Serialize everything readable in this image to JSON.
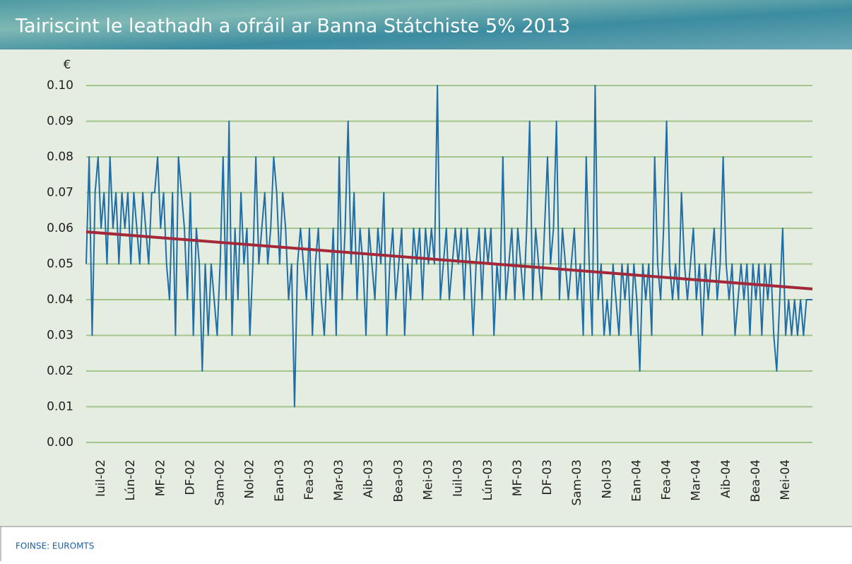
{
  "chart_data": {
    "type": "line",
    "title": "Tairiscint le leathadh a ofráil ar Banna Státchiste 5% 2013",
    "y_label": "€",
    "source": "FOINSE: EUROMTS",
    "categories": [
      null,
      null,
      null,
      null,
      null,
      "Iuil-02",
      null,
      null,
      null,
      null,
      null,
      null,
      null,
      null,
      null,
      "Lún-02",
      null,
      null,
      null,
      null,
      null,
      null,
      null,
      null,
      null,
      "MF-02",
      null,
      null,
      null,
      null,
      null,
      null,
      null,
      null,
      null,
      "DF-02",
      null,
      null,
      null,
      null,
      null,
      null,
      null,
      null,
      null,
      "Sam-02",
      null,
      null,
      null,
      null,
      null,
      null,
      null,
      null,
      null,
      "Nol-02",
      null,
      null,
      null,
      null,
      null,
      null,
      null,
      null,
      null,
      "Ean-03",
      null,
      null,
      null,
      null,
      null,
      null,
      null,
      null,
      null,
      "Fea-03",
      null,
      null,
      null,
      null,
      null,
      null,
      null,
      null,
      null,
      "Mar-03",
      null,
      null,
      null,
      null,
      null,
      null,
      null,
      null,
      null,
      "Aib-03",
      null,
      null,
      null,
      null,
      null,
      null,
      null,
      null,
      null,
      "Bea-03",
      null,
      null,
      null,
      null,
      null,
      null,
      null,
      null,
      null,
      "Mei-03",
      null,
      null,
      null,
      null,
      null,
      null,
      null,
      null,
      null,
      "Iuil-03",
      null,
      null,
      null,
      null,
      null,
      null,
      null,
      null,
      null,
      "Lún-03",
      null,
      null,
      null,
      null,
      null,
      null,
      null,
      null,
      null,
      "MF-03",
      null,
      null,
      null,
      null,
      null,
      null,
      null,
      null,
      null,
      "DF-03",
      null,
      null,
      null,
      null,
      null,
      null,
      null,
      null,
      null,
      "Sam-03",
      null,
      null,
      null,
      null,
      null,
      null,
      null,
      null,
      null,
      "Nol-03",
      null,
      null,
      null,
      null,
      null,
      null,
      null,
      null,
      null,
      "Ean-04",
      null,
      null,
      null,
      null,
      null,
      null,
      null,
      null,
      null,
      "Fea-04",
      null,
      null,
      null,
      null,
      null,
      null,
      null,
      null,
      null,
      "Mar-04",
      null,
      null,
      null,
      null,
      null,
      null,
      null,
      null,
      null,
      "Aib-04",
      null,
      null,
      null,
      null,
      null,
      null,
      null,
      null,
      null,
      "Bea-04",
      null,
      null,
      null,
      null,
      null,
      null,
      null,
      null,
      null,
      "Mei-04",
      null,
      null,
      null,
      null,
      null,
      null,
      null,
      null,
      null
    ],
    "series": [
      {
        "color": "#1f6ea8",
        "values": [
          0.05,
          0.08,
          0.03,
          0.07,
          0.08,
          0.06,
          0.07,
          0.05,
          0.08,
          0.06,
          0.07,
          0.05,
          0.07,
          0.06,
          0.07,
          0.05,
          0.07,
          0.06,
          0.05,
          0.07,
          0.06,
          0.05,
          0.07,
          0.07,
          0.08,
          0.06,
          0.07,
          0.05,
          0.04,
          0.07,
          0.03,
          0.08,
          0.07,
          0.06,
          0.04,
          0.07,
          0.03,
          0.06,
          0.05,
          0.02,
          0.05,
          0.03,
          0.05,
          0.04,
          0.03,
          0.05,
          0.08,
          0.04,
          0.09,
          0.03,
          0.06,
          0.04,
          0.07,
          0.05,
          0.06,
          0.03,
          0.05,
          0.08,
          0.05,
          0.06,
          0.07,
          0.05,
          0.06,
          0.08,
          0.07,
          0.05,
          0.07,
          0.06,
          0.04,
          0.05,
          0.01,
          0.05,
          0.06,
          0.05,
          0.04,
          0.06,
          0.03,
          0.05,
          0.06,
          0.04,
          0.03,
          0.05,
          0.04,
          0.06,
          0.03,
          0.08,
          0.04,
          0.06,
          0.09,
          0.05,
          0.07,
          0.04,
          0.06,
          0.05,
          0.03,
          0.06,
          0.05,
          0.04,
          0.06,
          0.05,
          0.07,
          0.03,
          0.05,
          0.06,
          0.04,
          0.05,
          0.06,
          0.03,
          0.05,
          0.04,
          0.06,
          0.05,
          0.06,
          0.04,
          0.06,
          0.05,
          0.06,
          0.05,
          0.1,
          0.04,
          0.05,
          0.06,
          0.04,
          0.05,
          0.06,
          0.05,
          0.06,
          0.04,
          0.06,
          0.05,
          0.03,
          0.05,
          0.06,
          0.04,
          0.06,
          0.05,
          0.06,
          0.03,
          0.05,
          0.04,
          0.08,
          0.04,
          0.05,
          0.06,
          0.04,
          0.06,
          0.05,
          0.04,
          0.06,
          0.09,
          0.04,
          0.06,
          0.05,
          0.04,
          0.06,
          0.08,
          0.05,
          0.06,
          0.09,
          0.04,
          0.06,
          0.05,
          0.04,
          0.05,
          0.06,
          0.04,
          0.05,
          0.03,
          0.08,
          0.05,
          0.03,
          0.1,
          0.04,
          0.05,
          0.03,
          0.04,
          0.03,
          0.05,
          0.04,
          0.03,
          0.05,
          0.04,
          0.05,
          0.03,
          0.05,
          0.04,
          0.02,
          0.05,
          0.04,
          0.05,
          0.03,
          0.08,
          0.05,
          0.04,
          0.06,
          0.09,
          0.05,
          0.04,
          0.05,
          0.04,
          0.07,
          0.05,
          0.04,
          0.05,
          0.06,
          0.04,
          0.05,
          0.03,
          0.05,
          0.04,
          0.05,
          0.06,
          0.04,
          0.05,
          0.08,
          0.05,
          0.04,
          0.05,
          0.03,
          0.04,
          0.05,
          0.04,
          0.05,
          0.03,
          0.05,
          0.04,
          0.05,
          0.03,
          0.05,
          0.04,
          0.05,
          0.03,
          0.02,
          0.04,
          0.06,
          0.03,
          0.04,
          0.03,
          0.04,
          0.03,
          0.04,
          0.03,
          0.04,
          0.04,
          0.04
        ]
      }
    ],
    "trend_line": {
      "color": "#a3283a",
      "start": 0.059,
      "end": 0.043
    },
    "ylim": [
      0,
      0.1
    ],
    "yticks": [
      {
        "value": 0,
        "label": "0.00"
      },
      {
        "value": 0.01,
        "label": "0.01"
      },
      {
        "value": 0.02,
        "label": "0.02"
      },
      {
        "value": 0.03,
        "label": "0.03"
      },
      {
        "value": 0.04,
        "label": "0.04"
      },
      {
        "value": 0.05,
        "label": "0.05"
      },
      {
        "value": 0.06,
        "label": "0.06"
      },
      {
        "value": 0.07,
        "label": "0.07"
      },
      {
        "value": 0.08,
        "label": "0.08"
      },
      {
        "value": 0.09,
        "label": "0.09"
      },
      {
        "value": 0.1,
        "label": "0.10"
      }
    ],
    "grid": true
  }
}
